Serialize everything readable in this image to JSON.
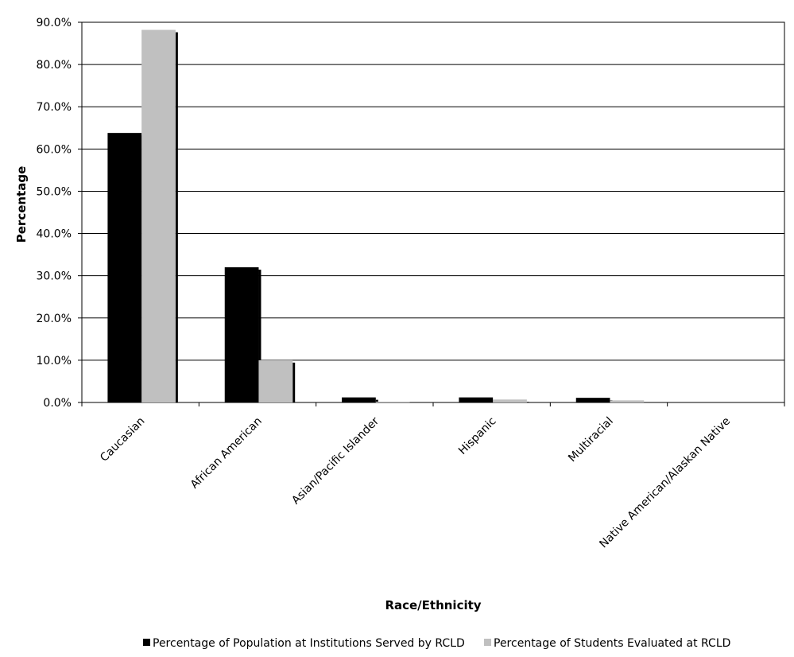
{
  "chart_data": {
    "type": "bar",
    "title": "",
    "xlabel": "Race/Ethnicity",
    "ylabel": "Percentage",
    "ylim": [
      0,
      90
    ],
    "yticks": [
      "0.0%",
      "10.0%",
      "20.0%",
      "30.0%",
      "40.0%",
      "50.0%",
      "60.0%",
      "70.0%",
      "80.0%",
      "90.0%"
    ],
    "grid": true,
    "legend_position": "bottom",
    "categories": [
      "Caucasian",
      "African American",
      "Asian/Pacific Islander",
      "Hispanic",
      "Multiracial",
      "Native American/Alaskan Native"
    ],
    "series": [
      {
        "name": "Percentage of Population at Institutions Served by RCLD",
        "color": "#000000",
        "values": [
          63.8,
          32.0,
          1.2,
          1.2,
          1.1,
          0.0
        ]
      },
      {
        "name": "Percentage of Students Evaluated at RCLD",
        "color": "#c0c0c0",
        "values": [
          88.2,
          10.0,
          0.2,
          0.7,
          0.5,
          0.0
        ]
      }
    ]
  }
}
